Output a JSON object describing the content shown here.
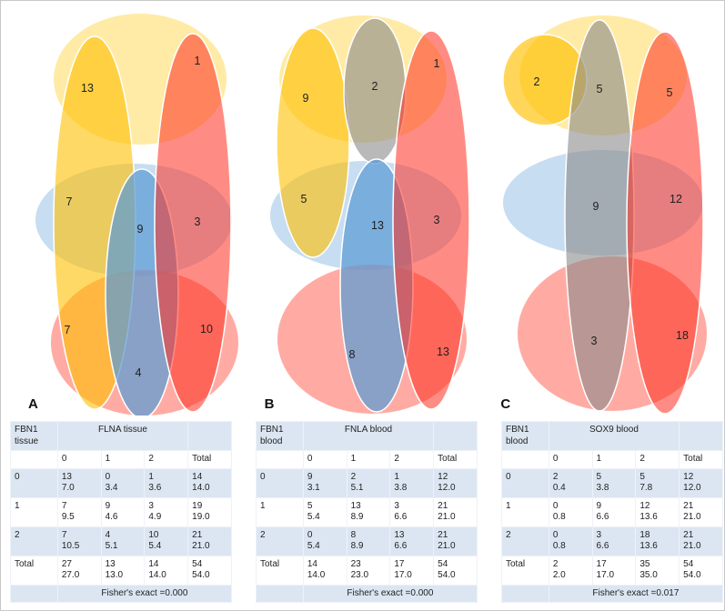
{
  "figure": {
    "panels": [
      {
        "label": "A",
        "regions": [
          "13",
          "1",
          "7",
          "9",
          "3",
          "7",
          "4",
          "10"
        ]
      },
      {
        "label": "B",
        "regions": [
          "9",
          "2",
          "1",
          "5",
          "13",
          "3",
          "8",
          "13"
        ]
      },
      {
        "label": "C",
        "regions": [
          "2",
          "5",
          "5",
          "9",
          "12",
          "3",
          "18"
        ]
      }
    ],
    "colors": {
      "yellow_large": "#FFD84D",
      "yellow_set": "#FFC000",
      "red_set": "#FF2E1F",
      "red_large": "#FF7366",
      "blue_light": "#BDD7EE",
      "blue_set": "#5B9BD5",
      "gray_set": "#8A8A8A",
      "table_band": "#DCE6F2"
    }
  },
  "tables": [
    {
      "row_var": "FBN1 tissue",
      "col_var": "FLNA tissue",
      "col_labels": [
        "0",
        "1",
        "2",
        "Total"
      ],
      "rows": [
        {
          "label": "0",
          "cells": [
            [
              "13",
              "7.0"
            ],
            [
              "0",
              "3.4"
            ],
            [
              "1",
              "3.6"
            ],
            [
              "14",
              "14.0"
            ]
          ]
        },
        {
          "label": "1",
          "cells": [
            [
              "7",
              "9.5"
            ],
            [
              "9",
              "4.6"
            ],
            [
              "3",
              "4.9"
            ],
            [
              "19",
              "19.0"
            ]
          ]
        },
        {
          "label": "2",
          "cells": [
            [
              "7",
              "10.5"
            ],
            [
              "4",
              "5.1"
            ],
            [
              "10",
              "5.4"
            ],
            [
              "21",
              "21.0"
            ]
          ]
        },
        {
          "label": "Total",
          "cells": [
            [
              "27",
              "27.0"
            ],
            [
              "13",
              "13.0"
            ],
            [
              "14",
              "14.0"
            ],
            [
              "54",
              "54.0"
            ]
          ]
        }
      ],
      "footer": "Fisher's exact =0.000"
    },
    {
      "row_var": "FBN1 blood",
      "col_var": "FNLA blood",
      "col_labels": [
        "0",
        "1",
        "2",
        "Total"
      ],
      "rows": [
        {
          "label": "0",
          "cells": [
            [
              "9",
              "3.1"
            ],
            [
              "2",
              "5.1"
            ],
            [
              "1",
              "3.8"
            ],
            [
              "12",
              "12.0"
            ]
          ]
        },
        {
          "label": "1",
          "cells": [
            [
              "5",
              "5.4"
            ],
            [
              "13",
              "8.9"
            ],
            [
              "3",
              "6.6"
            ],
            [
              "21",
              "21.0"
            ]
          ]
        },
        {
          "label": "2",
          "cells": [
            [
              "0",
              "5.4"
            ],
            [
              "8",
              "8.9"
            ],
            [
              "13",
              "6.6"
            ],
            [
              "21",
              "21.0"
            ]
          ]
        },
        {
          "label": "Total",
          "cells": [
            [
              "14",
              "14.0"
            ],
            [
              "23",
              "23.0"
            ],
            [
              "17",
              "17.0"
            ],
            [
              "54",
              "54.0"
            ]
          ]
        }
      ],
      "footer": "Fisher's exact =0.000"
    },
    {
      "row_var": "FBN1 blood",
      "col_var": "SOX9 blood",
      "col_labels": [
        "0",
        "1",
        "2",
        "Total"
      ],
      "rows": [
        {
          "label": "0",
          "cells": [
            [
              "2",
              "0.4"
            ],
            [
              "5",
              "3.8"
            ],
            [
              "5",
              "7.8"
            ],
            [
              "12",
              "12.0"
            ]
          ]
        },
        {
          "label": "1",
          "cells": [
            [
              "0",
              "0.8"
            ],
            [
              "9",
              "6.6"
            ],
            [
              "12",
              "13.6"
            ],
            [
              "21",
              "21.0"
            ]
          ]
        },
        {
          "label": "2",
          "cells": [
            [
              "0",
              "0.8"
            ],
            [
              "3",
              "6.6"
            ],
            [
              "18",
              "13.6"
            ],
            [
              "21",
              "21.0"
            ]
          ]
        },
        {
          "label": "Total",
          "cells": [
            [
              "2",
              "2.0"
            ],
            [
              "17",
              "17.0"
            ],
            [
              "35",
              "35.0"
            ],
            [
              "54",
              "54.0"
            ]
          ]
        }
      ],
      "footer": "Fisher's exact =0.017"
    }
  ],
  "chart_data": [
    {
      "type": "table",
      "subtype": "venn-crosstab",
      "panel": "A",
      "title": "FBN1 tissue vs FLNA tissue",
      "row_variable": "FBN1 tissue",
      "col_variable": "FLNA tissue",
      "row_levels": [
        "0",
        "1",
        "2"
      ],
      "col_levels": [
        "0",
        "1",
        "2"
      ],
      "observed": [
        [
          13,
          0,
          1
        ],
        [
          7,
          9,
          3
        ],
        [
          7,
          4,
          10
        ]
      ],
      "expected": [
        [
          7.0,
          3.4,
          3.6
        ],
        [
          9.5,
          4.6,
          4.9
        ],
        [
          10.5,
          5.1,
          5.4
        ]
      ],
      "row_totals": [
        14,
        19,
        21
      ],
      "col_totals": [
        27,
        13,
        14
      ],
      "grand_total": 54,
      "fishers_exact_p": "0.000",
      "venn_region_counts": [
        13,
        1,
        7,
        9,
        3,
        7,
        4,
        10
      ]
    },
    {
      "type": "table",
      "subtype": "venn-crosstab",
      "panel": "B",
      "title": "FBN1 blood vs FNLA blood",
      "row_variable": "FBN1 blood",
      "col_variable": "FNLA blood",
      "row_levels": [
        "0",
        "1",
        "2"
      ],
      "col_levels": [
        "0",
        "1",
        "2"
      ],
      "observed": [
        [
          9,
          2,
          1
        ],
        [
          5,
          13,
          3
        ],
        [
          0,
          8,
          13
        ]
      ],
      "expected": [
        [
          3.1,
          5.1,
          3.8
        ],
        [
          5.4,
          8.9,
          6.6
        ],
        [
          5.4,
          8.9,
          6.6
        ]
      ],
      "row_totals": [
        12,
        21,
        21
      ],
      "col_totals": [
        14,
        23,
        17
      ],
      "grand_total": 54,
      "fishers_exact_p": "0.000",
      "venn_region_counts": [
        9,
        2,
        1,
        5,
        13,
        3,
        8,
        13
      ]
    },
    {
      "type": "table",
      "subtype": "venn-crosstab",
      "panel": "C",
      "title": "FBN1 blood vs SOX9 blood",
      "row_variable": "FBN1 blood",
      "col_variable": "SOX9 blood",
      "row_levels": [
        "0",
        "1",
        "2"
      ],
      "col_levels": [
        "0",
        "1",
        "2"
      ],
      "observed": [
        [
          2,
          5,
          5
        ],
        [
          0,
          9,
          12
        ],
        [
          0,
          3,
          18
        ]
      ],
      "expected": [
        [
          0.4,
          3.8,
          7.8
        ],
        [
          0.8,
          6.6,
          13.6
        ],
        [
          0.8,
          6.6,
          13.6
        ]
      ],
      "row_totals": [
        12,
        21,
        21
      ],
      "col_totals": [
        2,
        17,
        35
      ],
      "grand_total": 54,
      "fishers_exact_p": "0.017",
      "venn_region_counts": [
        2,
        5,
        5,
        9,
        12,
        3,
        18
      ]
    }
  ]
}
